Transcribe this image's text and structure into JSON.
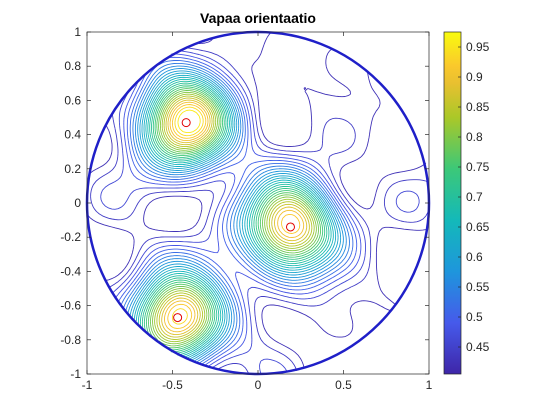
{
  "chart_data": {
    "type": "contour",
    "title": "Vapaa orientaatio",
    "xlabel": "",
    "ylabel": "",
    "xlim": [
      -1,
      1
    ],
    "ylim": [
      -1,
      1
    ],
    "x_ticks": [
      "-1",
      "-0.5",
      "0",
      "0.5",
      "1"
    ],
    "y_ticks": [
      "-1",
      "-0.8",
      "-0.6",
      "-0.4",
      "-0.2",
      "0",
      "0.2",
      "0.4",
      "0.6",
      "0.8",
      "1"
    ],
    "grid": false,
    "colormap": "parula",
    "colorbar": {
      "range": [
        0.405,
        0.975
      ],
      "ticks": [
        "0.45",
        "0.5",
        "0.55",
        "0.6",
        "0.65",
        "0.7",
        "0.75",
        "0.8",
        "0.85",
        "0.9",
        "0.95"
      ]
    },
    "boundary": {
      "shape": "circle",
      "center": [
        0,
        0
      ],
      "radius": 1,
      "color": "#1f1fc8"
    },
    "maxima": [
      {
        "x": -0.42,
        "y": 0.47,
        "value": 0.97
      },
      {
        "x": 0.19,
        "y": -0.14,
        "value": 0.95
      },
      {
        "x": -0.47,
        "y": -0.67,
        "value": 0.96
      }
    ],
    "marker_color": "#e00000",
    "levels": 30
  }
}
